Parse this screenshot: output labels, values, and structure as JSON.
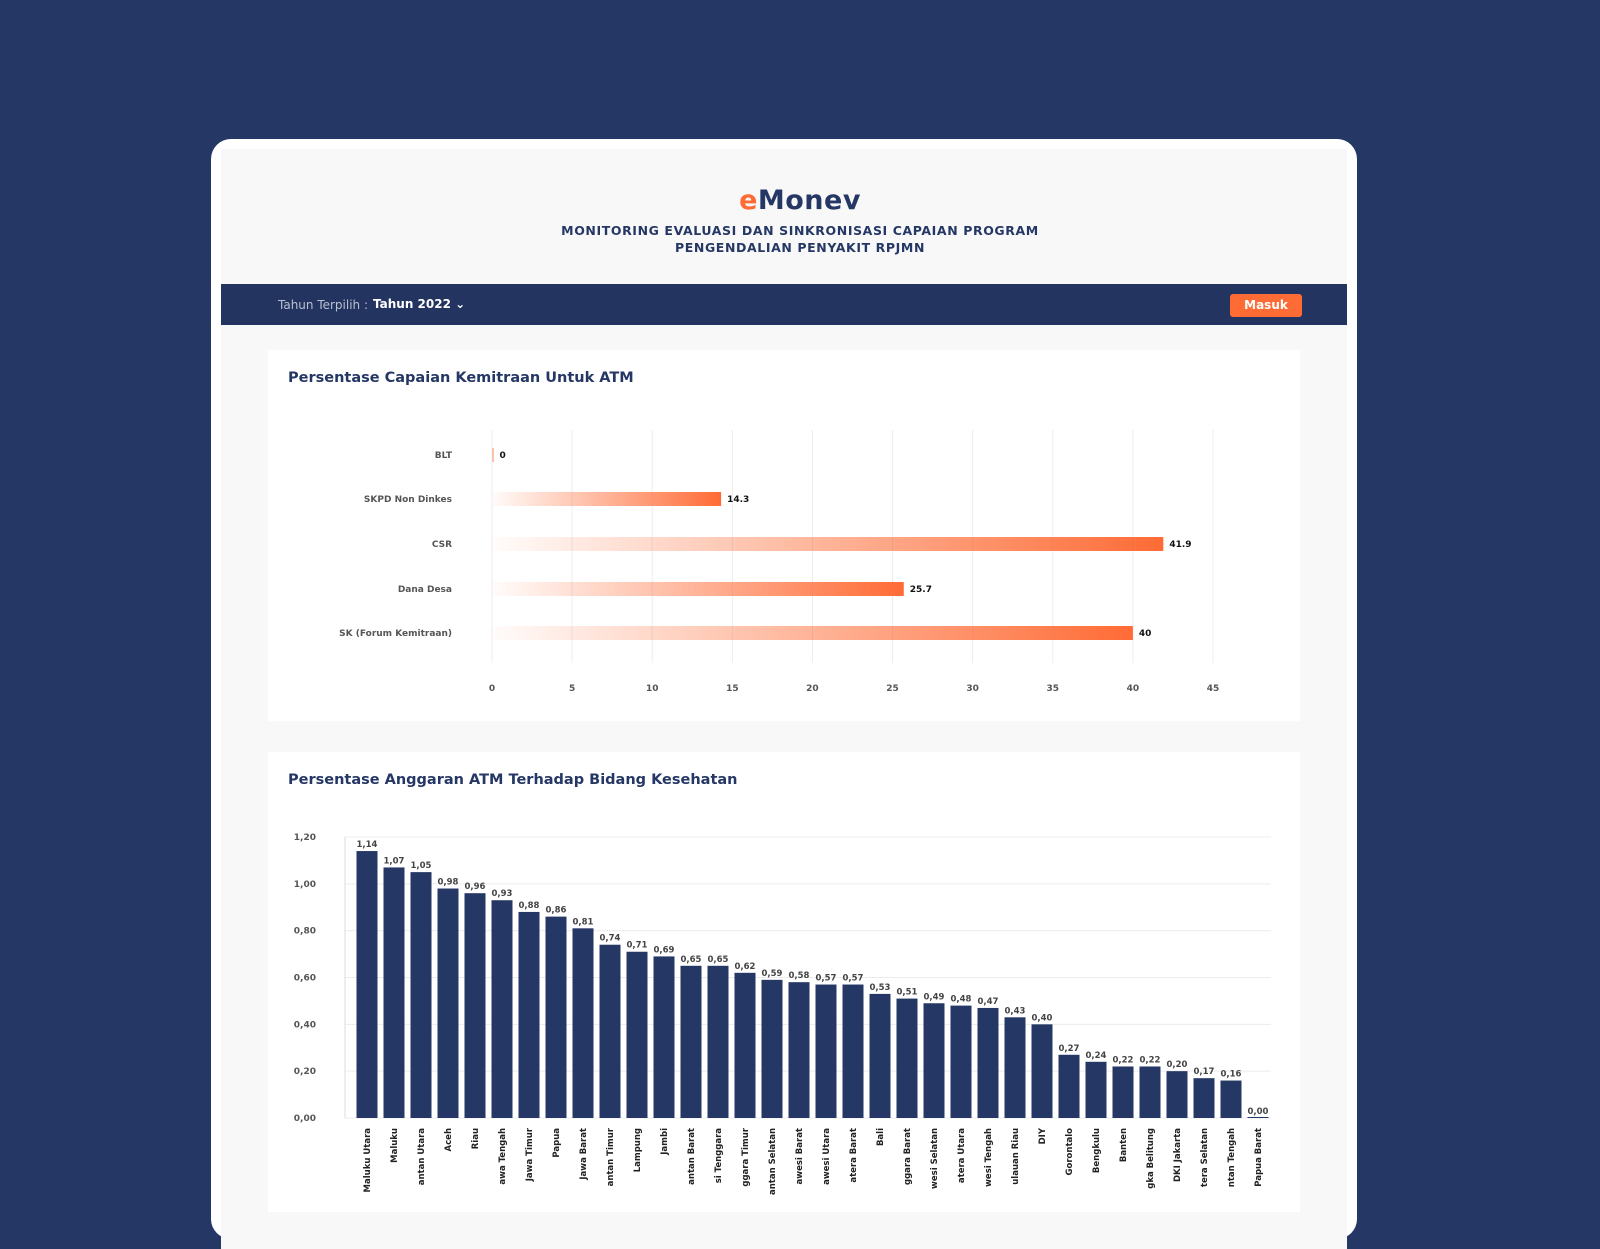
{
  "header": {
    "logo_prefix": "e",
    "logo_main": "Monev",
    "subtitle_line1": "MONITORING EVALUASI DAN SINKRONISASI CAPAIAN PROGRAM",
    "subtitle_line2": "PENGENDALIAN PENYAKIT RPJMN"
  },
  "nav": {
    "year_label": "Tahun Terpilih :",
    "year_value": "Tahun 2022 ⌄",
    "login_label": "Masuk"
  },
  "colors": {
    "background": "#253764",
    "accent": "#ff6b35",
    "bar": "#253764"
  },
  "chart_data": [
    {
      "type": "bar",
      "orientation": "horizontal",
      "title": "Persentase Capaian Kemitraan Untuk ATM",
      "categories": [
        "BLT",
        "SKPD Non Dinkes",
        "CSR",
        "Dana Desa",
        "SK (Forum Kemitraan)"
      ],
      "values": [
        0,
        14.3,
        41.9,
        25.7,
        40
      ],
      "value_labels": [
        "0",
        "14.3",
        "41.9",
        "25.7",
        "40"
      ],
      "xlim": [
        0,
        45
      ],
      "xticks": [
        "0",
        "5",
        "10",
        "15",
        "20",
        "25",
        "30",
        "35",
        "40",
        "45"
      ],
      "grid": true
    },
    {
      "type": "bar",
      "title": "Persentase Anggaran ATM Terhadap Bidang Kesehatan",
      "categories": [
        "Maluku Utara",
        "Maluku",
        "antan Utara",
        "Aceh",
        "Riau",
        "awa Tengah",
        "Jawa Timur",
        "Papua",
        "Jawa Barat",
        "antan Timur",
        "Lampung",
        "Jambi",
        "antan Barat",
        "si Tenggara",
        "ggara Timur",
        "antan Selatan",
        "awesi Barat",
        "awesi Utara",
        "atera Barat",
        "Bali",
        "ggara Barat",
        "wesi Selatan",
        "atera Utara",
        "wesi Tengah",
        "ulauan Riau",
        "DIY",
        "Gorontalo",
        "Bengkulu",
        "Banten",
        "gka Belitung",
        "DKI Jakarta",
        "tera Selatan",
        "ntan Tengah",
        "Papua Barat"
      ],
      "values": [
        1.14,
        1.07,
        1.05,
        0.98,
        0.96,
        0.93,
        0.88,
        0.86,
        0.81,
        0.74,
        0.71,
        0.69,
        0.65,
        0.65,
        0.62,
        0.59,
        0.58,
        0.57,
        0.57,
        0.53,
        0.51,
        0.49,
        0.48,
        0.47,
        0.43,
        0.4,
        0.27,
        0.24,
        0.22,
        0.22,
        0.2,
        0.17,
        0.16,
        0.0
      ],
      "value_labels": [
        "1,14",
        "1,07",
        "1,05",
        "0,98",
        "0,96",
        "0,93",
        "0,88",
        "0,86",
        "0,81",
        "0,74",
        "0,71",
        "0,69",
        "0,65",
        "0,65",
        "0,62",
        "0,59",
        "0,58",
        "0,57",
        "0,57",
        "0,53",
        "0,51",
        "0,49",
        "0,48",
        "0,47",
        "0,43",
        "0,40",
        "0,27",
        "0,24",
        "0,22",
        "0,22",
        "0,20",
        "0,17",
        "0,16",
        "0,00"
      ],
      "ylim": [
        0,
        1.2
      ],
      "yticks": [
        "0,00",
        "0,20",
        "0,40",
        "0,60",
        "0,80",
        "1,00",
        "1,20"
      ],
      "grid": true
    }
  ]
}
